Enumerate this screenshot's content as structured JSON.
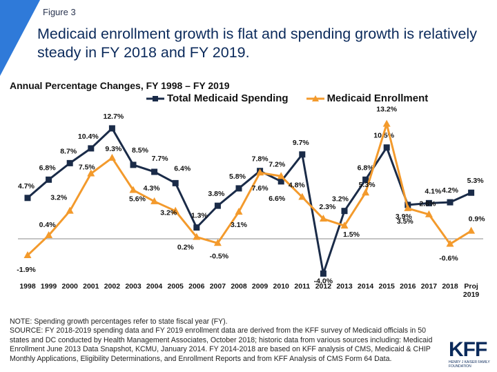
{
  "header": {
    "figure_label": "Figure 3",
    "headline": "Medicaid enrollment growth is flat and spending growth is relatively steady in FY 2018 and FY 2019."
  },
  "colors": {
    "accent": "#2f7ad9",
    "spending": "#1a2b48",
    "enrollment": "#f39a2c"
  },
  "chart_data": {
    "type": "line",
    "title": "Annual Percentage Changes, FY 1998 – FY 2019",
    "categories": [
      "1998",
      "1999",
      "2000",
      "2001",
      "2002",
      "2003",
      "2004",
      "2005",
      "2006",
      "2007",
      "2008",
      "2009",
      "2010",
      "2011",
      "2012",
      "2013",
      "2014",
      "2015",
      "2016",
      "2017",
      "2018",
      "Proj 2019"
    ],
    "series": [
      {
        "name": "Total Medicaid Spending",
        "color": "#1a2b48",
        "marker": "square",
        "values": [
          4.7,
          6.8,
          8.7,
          10.4,
          12.7,
          8.5,
          7.7,
          6.4,
          1.3,
          3.8,
          5.8,
          7.8,
          6.6,
          9.7,
          -4.0,
          3.2,
          6.8,
          10.5,
          3.9,
          4.1,
          4.2,
          5.3
        ],
        "labels": [
          "4.7%",
          "6.8%",
          "8.7%",
          "10.4%",
          "12.7%",
          "8.5%",
          "7.7%",
          "6.4%",
          "1.3%",
          "3.8%",
          "5.8%",
          "7.8%",
          "6.6%",
          "9.7%",
          "-4.0%",
          "3.2%",
          "6.8%",
          "10.5%",
          "3.9%",
          "4.1%",
          "4.2%",
          "5.3%"
        ]
      },
      {
        "name": "Medicaid Enrollment",
        "color": "#f39a2c",
        "marker": "triangle",
        "values": [
          -1.9,
          0.4,
          3.2,
          7.5,
          9.3,
          5.6,
          4.3,
          3.2,
          0.2,
          -0.5,
          3.1,
          7.6,
          7.2,
          4.8,
          2.3,
          1.5,
          5.3,
          13.2,
          3.5,
          2.8,
          -0.6,
          0.9
        ],
        "labels": [
          "-1.9%",
          "0.4%",
          "3.2%",
          "7.5%",
          "9.3%",
          "5.6%",
          "4.3%",
          "3.2%",
          "0.2%",
          "-0.5%",
          "3.1%",
          "7.6%",
          "7.2%",
          "4.8%",
          "2.3%",
          "1.5%",
          "5.3%",
          "13.2%",
          "3.5%",
          "2.8%",
          "-0.6%",
          "0.9%"
        ]
      }
    ],
    "ylim": [
      -5,
      14
    ],
    "grid": false,
    "legend": "top-center"
  },
  "notes": {
    "note": "NOTE: Spending growth percentages refer to state fiscal year (FY).",
    "source": "SOURCE: FY 2018-2019 spending data and FY 2019 enrollment data are derived from the KFF survey of Medicaid officials in 50 states and DC conducted by Health Management Associates, October 2018; historic data from various sources including:  Medicaid Enrollment June 2013 Data Snapshot, KCMU, January 2014. FY 2014-2018 are based on KFF analysis of CMS, Medicaid & CHIP Monthly Applications, Eligibility Determinations, and Enrollment Reports and from KFF Analysis of CMS Form 64 Data."
  },
  "logo": {
    "text": "KFF",
    "subtext": "HENRY J KAISER FAMILY FOUNDATION"
  }
}
